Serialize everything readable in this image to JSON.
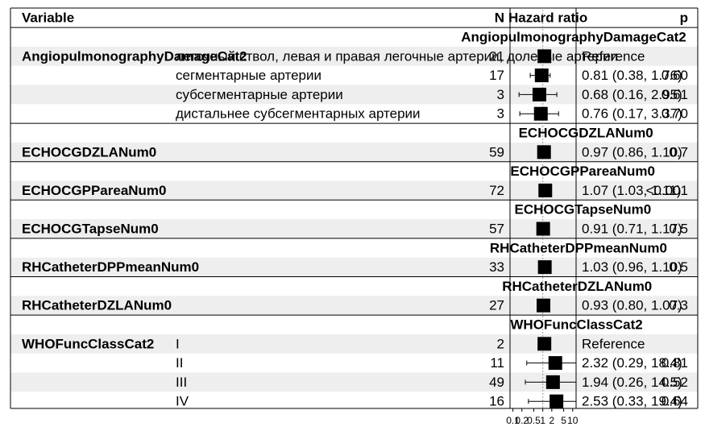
{
  "chart_data": {
    "type": "forest",
    "x_scale": "log",
    "reference_line": 1,
    "x_ticks": [
      {
        "value": 0.1,
        "label": "0.1"
      },
      {
        "value": 0.2,
        "label": "0.2"
      },
      {
        "value": 0.5,
        "label": "0.5"
      },
      {
        "value": 1,
        "label": "1"
      },
      {
        "value": 2,
        "label": "2"
      },
      {
        "value": 5,
        "label": "5"
      },
      {
        "value": 10,
        "label": "10"
      }
    ],
    "header": {
      "variable": "Variable",
      "n": "N",
      "hr": "Hazard ratio",
      "p": "p"
    },
    "groups": [
      {
        "title": "AngiopulmonographyDamageCat2",
        "variable": "AngiopulmonographyDamageCat2",
        "rows": [
          {
            "level": "легочный ствол, левая и правая легочные артерии, долевые артерии",
            "n": "21",
            "estimate": 1,
            "lower": null,
            "upper": null,
            "hr_text": "Reference",
            "p_text": ""
          },
          {
            "level": "сегментарные артерии",
            "n": "17",
            "estimate": 0.81,
            "lower": 0.38,
            "upper": 1.76,
            "hr_text": "0.81 (0.38, 1.76)",
            "p_text": "0.60"
          },
          {
            "level": "субсегментарные артерии",
            "n": "3",
            "estimate": 0.68,
            "lower": 0.16,
            "upper": 2.95,
            "hr_text": "0.68 (0.16, 2.95)",
            "p_text": "0.61"
          },
          {
            "level": "дистальнее субсегментарных артерии",
            "n": "3",
            "estimate": 0.76,
            "lower": 0.17,
            "upper": 3.37,
            "hr_text": "0.76 (0.17, 3.37)",
            "p_text": "0.70"
          }
        ]
      },
      {
        "title": "ECHOCGDZLANum0",
        "variable": "ECHOCGDZLANum0",
        "rows": [
          {
            "level": "",
            "n": "59",
            "estimate": 0.97,
            "lower": 0.86,
            "upper": 1.1,
            "hr_text": "0.97 (0.86, 1.10)",
            "p_text": "0.7"
          }
        ]
      },
      {
        "title": "ECHOCGPPareaNum0",
        "variable": "ECHOCGPPareaNum0",
        "rows": [
          {
            "level": "",
            "n": "72",
            "estimate": 1.07,
            "lower": 1.03,
            "upper": 1.11,
            "hr_text": "1.07 (1.03, 1.11)",
            "p_text": "<0.001"
          }
        ]
      },
      {
        "title": "ECHOCGTapseNum0",
        "variable": "ECHOCGTapseNum0",
        "rows": [
          {
            "level": "",
            "n": "57",
            "estimate": 0.91,
            "lower": 0.71,
            "upper": 1.17,
            "hr_text": "0.91 (0.71, 1.17)",
            "p_text": "0.5"
          }
        ]
      },
      {
        "title": "RHCatheterDPPmeanNum0",
        "variable": "RHCatheterDPPmeanNum0",
        "rows": [
          {
            "level": "",
            "n": "33",
            "estimate": 1.03,
            "lower": 0.96,
            "upper": 1.1,
            "hr_text": "1.03 (0.96, 1.10)",
            "p_text": "0.5"
          }
        ]
      },
      {
        "title": "RHCatheterDZLANum0",
        "variable": "RHCatheterDZLANum0",
        "rows": [
          {
            "level": "",
            "n": "27",
            "estimate": 0.93,
            "lower": 0.8,
            "upper": 1.07,
            "hr_text": "0.93 (0.80, 1.07)",
            "p_text": "0.3"
          }
        ]
      },
      {
        "title": "WHOFuncClassCat2",
        "variable": "WHOFuncClassCat2",
        "rows": [
          {
            "level": "I",
            "n": "2",
            "estimate": 1,
            "lower": null,
            "upper": null,
            "hr_text": "Reference",
            "p_text": ""
          },
          {
            "level": "II",
            "n": "11",
            "estimate": 2.32,
            "lower": 0.29,
            "upper": 18.4,
            "hr_text": "2.32 (0.29, 18.4)",
            "p_text": "0.81"
          },
          {
            "level": "III",
            "n": "49",
            "estimate": 1.94,
            "lower": 0.26,
            "upper": 14.5,
            "hr_text": "1.94 (0.26, 14.5)",
            "p_text": "0.52"
          },
          {
            "level": "IV",
            "n": "16",
            "estimate": 2.53,
            "lower": 0.33,
            "upper": 19.4,
            "hr_text": "2.53 (0.33, 19.4)",
            "p_text": "0.64"
          }
        ]
      }
    ]
  }
}
